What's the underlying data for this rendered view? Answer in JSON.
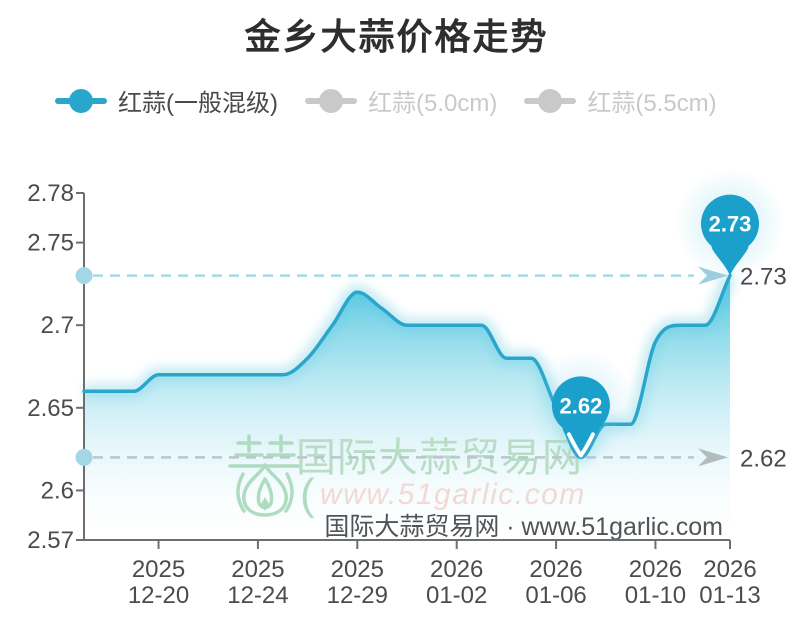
{
  "title": "金乡大蒜价格走势",
  "legend": {
    "items": [
      {
        "label": "红蒜(一般混级)",
        "color": "#29a6cc",
        "label_color": "#4a4a4a",
        "selected": true
      },
      {
        "label": "红蒜(5.0cm)",
        "color": "#c9c9c9",
        "label_color": "#c9c9c9",
        "selected": false
      },
      {
        "label": "红蒜(5.5cm)",
        "color": "#c9c9c9",
        "label_color": "#c9c9c9",
        "selected": false
      }
    ]
  },
  "watermark": {
    "brand_cn": "国际大蒜贸易网",
    "paren": "(",
    "brand_url": "www.51garlic.com",
    "footer": "国际大蒜贸易网 · www.51garlic.com",
    "logo_color": "#aedcc0",
    "brand_cn_color": "#b7ddc4",
    "brand_url_color": "#f2d9d3",
    "footer_color": "#4f5459"
  },
  "chart_data": {
    "type": "area",
    "title": "金乡大蒜价格走势",
    "x": [
      "2025-12-17",
      "2025-12-18",
      "2025-12-19",
      "2025-12-20",
      "2025-12-21",
      "2025-12-22",
      "2025-12-23",
      "2025-12-24",
      "2025-12-25",
      "2025-12-26",
      "2025-12-27",
      "2025-12-29",
      "2025-12-30",
      "2025-12-31",
      "2026-01-01",
      "2026-01-02",
      "2026-01-03",
      "2026-01-04",
      "2026-01-05",
      "2026-01-06",
      "2026-01-07",
      "2026-01-08",
      "2026-01-09",
      "2026-01-10",
      "2026-01-11",
      "2026-01-12",
      "2026-01-13"
    ],
    "series": [
      {
        "name": "红蒜(一般混级)",
        "color": "#2aa6cc",
        "visible": true,
        "values": [
          2.66,
          2.66,
          2.66,
          2.67,
          2.67,
          2.67,
          2.67,
          2.67,
          2.67,
          2.68,
          2.7,
          2.72,
          2.71,
          2.7,
          2.7,
          2.7,
          2.7,
          2.68,
          2.68,
          2.65,
          2.62,
          2.64,
          2.64,
          2.69,
          2.7,
          2.7,
          2.73
        ]
      },
      {
        "name": "红蒜(5.0cm)",
        "color": "#c9c9c9",
        "visible": false,
        "values": []
      },
      {
        "name": "红蒜(5.5cm)",
        "color": "#c9c9c9",
        "visible": false,
        "values": []
      }
    ],
    "ylim": [
      2.57,
      2.78
    ],
    "y_ticks": [
      {
        "value": 2.57,
        "label": "2.57"
      },
      {
        "value": 2.6,
        "label": "2.6"
      },
      {
        "value": 2.65,
        "label": "2.65"
      },
      {
        "value": 2.7,
        "label": "2.7"
      },
      {
        "value": 2.75,
        "label": "2.75"
      },
      {
        "value": 2.78,
        "label": "2.78"
      }
    ],
    "x_ticks": [
      {
        "date": "2025-12-20",
        "line1": "2025",
        "line2": "12-20"
      },
      {
        "date": "2025-12-24",
        "line1": "2025",
        "line2": "12-24"
      },
      {
        "date": "2025-12-29",
        "line1": "2025",
        "line2": "12-29"
      },
      {
        "date": "2026-01-02",
        "line1": "2026",
        "line2": "01-02"
      },
      {
        "date": "2026-01-06",
        "line1": "2026",
        "line2": "01-06"
      },
      {
        "date": "2026-01-10",
        "line1": "2026",
        "line2": "01-10"
      },
      {
        "date": "2026-01-13",
        "line1": "2026",
        "line2": "01-13"
      }
    ],
    "annotations": {
      "max": {
        "date": "2026-01-13",
        "value": 2.73,
        "label": "2.73",
        "pin_color": "#1aa0ca",
        "dash_color": "#a6d9e8",
        "arrow_color": "#9ccede"
      },
      "min": {
        "date": "2026-01-07",
        "value": 2.62,
        "label": "2.62",
        "pin_color": "#1aa0ca",
        "dash_color": "#b9c6cc",
        "arrow_color": "#b2bbbf"
      }
    },
    "style": {
      "area_gradient_top": "#40c1dc",
      "area_gradient_bottom": "#ffffff",
      "halo_color": "#bfe9f2",
      "axis_color": "#6e6e6e",
      "tick_label_color": "#4c4c4c",
      "annotation_label_color": "#4a4a4a",
      "axis_dot_color": "#a3d7e6"
    },
    "grid": false,
    "legend_position": "top",
    "xlabel": "",
    "ylabel": ""
  }
}
